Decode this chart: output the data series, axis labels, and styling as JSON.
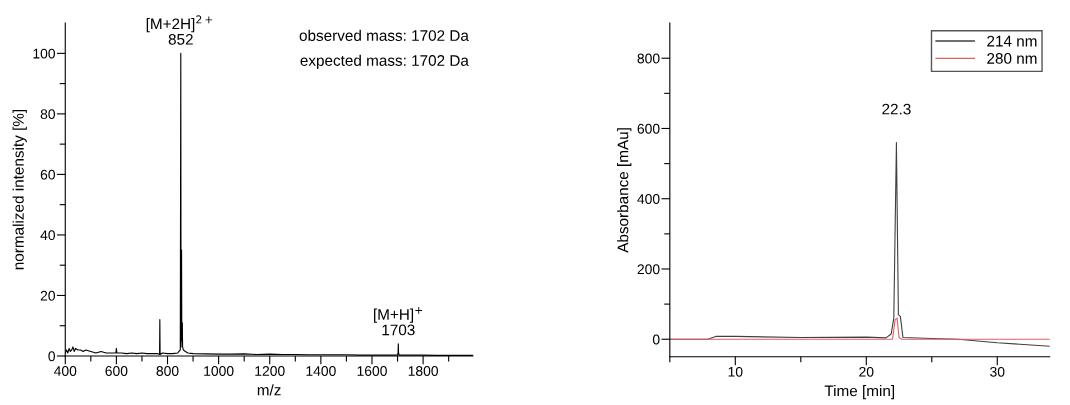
{
  "chart_data": [
    {
      "type": "line",
      "xlabel": "m/z",
      "ylabel": "normalized intensity [%]",
      "xlim": [
        400,
        1995
      ],
      "ylim": [
        0,
        110
      ],
      "xticks": [
        400,
        {
          "value": 500,
          "label": null
        },
        600,
        {
          "value": 700,
          "label": null
        },
        800,
        {
          "value": 900,
          "label": null
        },
        1000,
        {
          "value": 1100,
          "label": null
        },
        1200,
        {
          "value": 1300,
          "label": null
        },
        1400,
        {
          "value": 1500,
          "label": null
        },
        1600,
        {
          "value": 1700,
          "label": null
        },
        1800,
        {
          "value": 1900,
          "label": null
        }
      ],
      "yticks": [
        0,
        {
          "value": 10,
          "label": null
        },
        20,
        {
          "value": 30,
          "label": null
        },
        40,
        {
          "value": 50,
          "label": null
        },
        60,
        {
          "value": 70,
          "label": null
        },
        80,
        {
          "value": 90,
          "label": null
        },
        100
      ],
      "marker": "none",
      "line_style": "solid",
      "series": [
        {
          "color": "#000000",
          "x": [
            400,
            405,
            410,
            415,
            420,
            425,
            430,
            435,
            440,
            450,
            460,
            470,
            480,
            500,
            520,
            540,
            560,
            580,
            598,
            600,
            602,
            620,
            640,
            660,
            680,
            700,
            720,
            740,
            760,
            769,
            770,
            771,
            780,
            800,
            820,
            840,
            850,
            852,
            853,
            855,
            856,
            858,
            859,
            862,
            870,
            880,
            900,
            950,
            1000,
            1050,
            1100,
            1150,
            1200,
            1250,
            1300,
            1350,
            1400,
            1450,
            1500,
            1550,
            1600,
            1650,
            1700,
            1702,
            1703,
            1704,
            1706,
            1750,
            1800,
            1850,
            1900,
            1950,
            1995
          ],
          "values": [
            1,
            2,
            1,
            2.5,
            1.5,
            2,
            3,
            1.5,
            2.5,
            2,
            2,
            1.5,
            2,
            1.5,
            1,
            1.5,
            1,
            1,
            1,
            2.5,
            1,
            1,
            0.8,
            1,
            0.8,
            1,
            0.8,
            0.8,
            0.8,
            0.5,
            12,
            0.5,
            1,
            0.8,
            0.8,
            1,
            2,
            100,
            3,
            35,
            5,
            11,
            3,
            2,
            1.5,
            1,
            0.8,
            0.7,
            0.6,
            0.6,
            0.7,
            0.5,
            0.6,
            0.5,
            0.5,
            0.4,
            0.4,
            0.4,
            0.4,
            0.3,
            0.3,
            0.3,
            0.3,
            1,
            4,
            1,
            0.3,
            0.3,
            0.3,
            0.2,
            0.2,
            0.2,
            0.2
          ]
        }
      ],
      "annotations": [
        {
          "text": "[M+2H]$^{2+}$\n852",
          "x": 852,
          "y": 100
        },
        {
          "text": "[M+H]$^{+}$\n1703",
          "x": 1703,
          "y": 4
        },
        "observed mass: 1702 Da",
        "expected mass: 1702 Da"
      ]
    },
    {
      "type": "line",
      "xlabel": "Time [min]",
      "ylabel": "Absorbance [mAu]",
      "xlim": [
        5,
        34
      ],
      "ylim": [
        -50,
        900
      ],
      "xticks": [
        {
          "value": 5,
          "label": null
        },
        10,
        {
          "value": 15,
          "label": null
        },
        20,
        {
          "value": 25,
          "label": null
        },
        30
      ],
      "yticks": [
        0,
        {
          "value": 100,
          "label": null
        },
        200,
        {
          "value": 300,
          "label": null
        },
        400,
        {
          "value": 500,
          "label": null
        },
        600,
        {
          "value": 700,
          "label": null
        },
        800
      ],
      "marker": "none",
      "line_style": "solid",
      "legend": "top right",
      "series": [
        {
          "name": "214 nm",
          "color": "#404040",
          "x": [
            5,
            7.9,
            8.5,
            10,
            15,
            20,
            21.5,
            21.9,
            22.1,
            22.3,
            22.45,
            22.6,
            22.8,
            25,
            27,
            30,
            34
          ],
          "values": [
            0,
            0,
            8,
            8,
            5,
            6,
            4,
            15,
            60,
            560,
            70,
            65,
            5,
            2,
            0,
            -10,
            -20
          ]
        },
        {
          "name": "280 nm",
          "color": "#e06060",
          "x": [
            5,
            22,
            22.2,
            22.35,
            22.5,
            22.7,
            34
          ],
          "values": [
            0,
            0,
            55,
            60,
            5,
            0,
            0
          ]
        }
      ],
      "annotations": [
        {
          "text": "22.3",
          "x": 22.3,
          "y": 560
        }
      ]
    }
  ]
}
